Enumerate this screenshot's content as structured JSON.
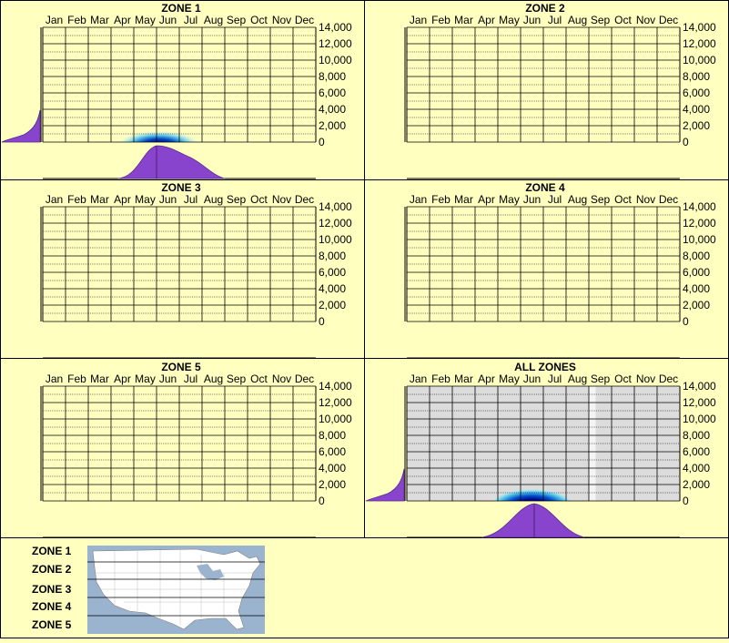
{
  "months": [
    "Jan",
    "Feb",
    "Mar",
    "Apr",
    "May",
    "Jun",
    "Jul",
    "Aug",
    "Sep",
    "Oct",
    "Nov",
    "Dec"
  ],
  "y_ticks": [
    "14,000",
    "12,000",
    "10,000",
    "8,000",
    "6,000",
    "4,000",
    "2,000",
    "0"
  ],
  "colors": {
    "background": "#ffffc0",
    "panel_border": "#000000",
    "grid_line": "#000000",
    "histogram_fill": "#8844cc",
    "heat_low": "#aee8f0",
    "heat_mid": "#0055cc",
    "heat_high": "#000080",
    "heat_peak": "#ff00ff",
    "all_zones_fill": "#dcdcdc"
  },
  "chart_data": [
    {
      "type": "heatmap",
      "title": "ZONE 1",
      "x_categories": [
        "Jan",
        "Feb",
        "Mar",
        "Apr",
        "May",
        "Jun",
        "Jul",
        "Aug",
        "Sep",
        "Oct",
        "Nov",
        "Dec"
      ],
      "ylim": [
        0,
        14000
      ],
      "hotspot": {
        "month_start": "May",
        "month_end": "Jul",
        "elevation": [
          0,
          1500
        ]
      },
      "month_profile": [
        0,
        0,
        0,
        0,
        0.25,
        0.95,
        0.75,
        0.2,
        0,
        0,
        0,
        0
      ],
      "elevation_profile": "concentrated below 2,000"
    },
    {
      "type": "heatmap",
      "title": "ZONE 2",
      "x_categories": [
        "Jan",
        "Feb",
        "Mar",
        "Apr",
        "May",
        "Jun",
        "Jul",
        "Aug",
        "Sep",
        "Oct",
        "Nov",
        "Dec"
      ],
      "ylim": [
        0,
        14000
      ]
    },
    {
      "type": "heatmap",
      "title": "ZONE 3",
      "x_categories": [
        "Jan",
        "Feb",
        "Mar",
        "Apr",
        "May",
        "Jun",
        "Jul",
        "Aug",
        "Sep",
        "Oct",
        "Nov",
        "Dec"
      ],
      "ylim": [
        0,
        14000
      ]
    },
    {
      "type": "heatmap",
      "title": "ZONE 4",
      "x_categories": [
        "Jan",
        "Feb",
        "Mar",
        "Apr",
        "May",
        "Jun",
        "Jul",
        "Aug",
        "Sep",
        "Oct",
        "Nov",
        "Dec"
      ],
      "ylim": [
        0,
        14000
      ]
    },
    {
      "type": "heatmap",
      "title": "ZONE 5",
      "x_categories": [
        "Jan",
        "Feb",
        "Mar",
        "Apr",
        "May",
        "Jun",
        "Jul",
        "Aug",
        "Sep",
        "Oct",
        "Nov",
        "Dec"
      ],
      "ylim": [
        0,
        14000
      ]
    },
    {
      "type": "heatmap",
      "title": "ALL ZONES",
      "x_categories": [
        "Jan",
        "Feb",
        "Mar",
        "Apr",
        "May",
        "Jun",
        "Jul",
        "Aug",
        "Sep",
        "Oct",
        "Nov",
        "Dec"
      ],
      "ylim": [
        0,
        14000
      ],
      "hotspot": {
        "month_start": "May",
        "month_end": "Jul",
        "elevation": [
          0,
          1500
        ]
      },
      "month_profile": [
        0,
        0,
        0,
        0,
        0.2,
        0.8,
        0.9,
        0.25,
        0,
        0,
        0,
        0
      ],
      "elevation_profile": "concentrated below 2,000",
      "shaded_background": true
    }
  ],
  "legend": {
    "zones": [
      "ZONE 1",
      "ZONE 2",
      "ZONE 3",
      "ZONE 4",
      "ZONE 5"
    ]
  }
}
